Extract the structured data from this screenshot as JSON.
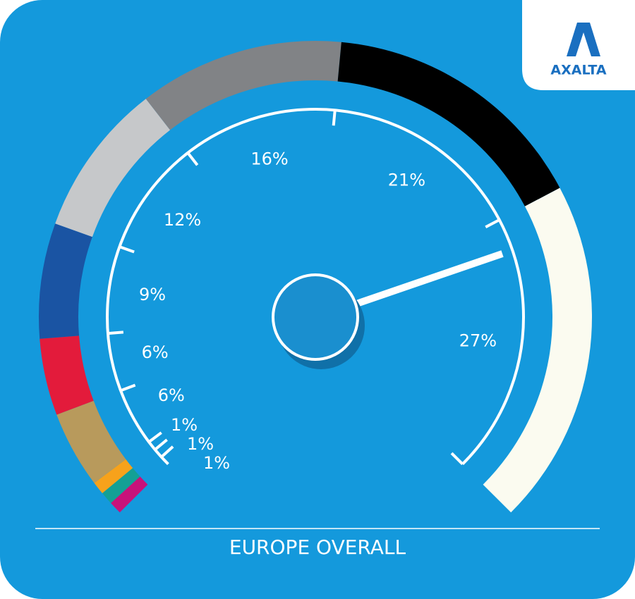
{
  "logo": "AXALTA",
  "chart_data": {
    "type": "gauge",
    "title": "EUROPE OVERALL",
    "series": [
      {
        "values": [
          1,
          1,
          1,
          6,
          6,
          9,
          12,
          16,
          21,
          27
        ],
        "value_labels": [
          "1%",
          "1%",
          "1%",
          "6%",
          "6%",
          "9%",
          "12%",
          "16%",
          "21%",
          "27%"
        ],
        "colors": [
          "#c8127a",
          "#14a095",
          "#f7a21b",
          "#b89a5c",
          "#e31b3b",
          "#1a54a3",
          "#c6c8ca",
          "#818386",
          "#000000",
          "#fbfbf0"
        ]
      }
    ]
  }
}
